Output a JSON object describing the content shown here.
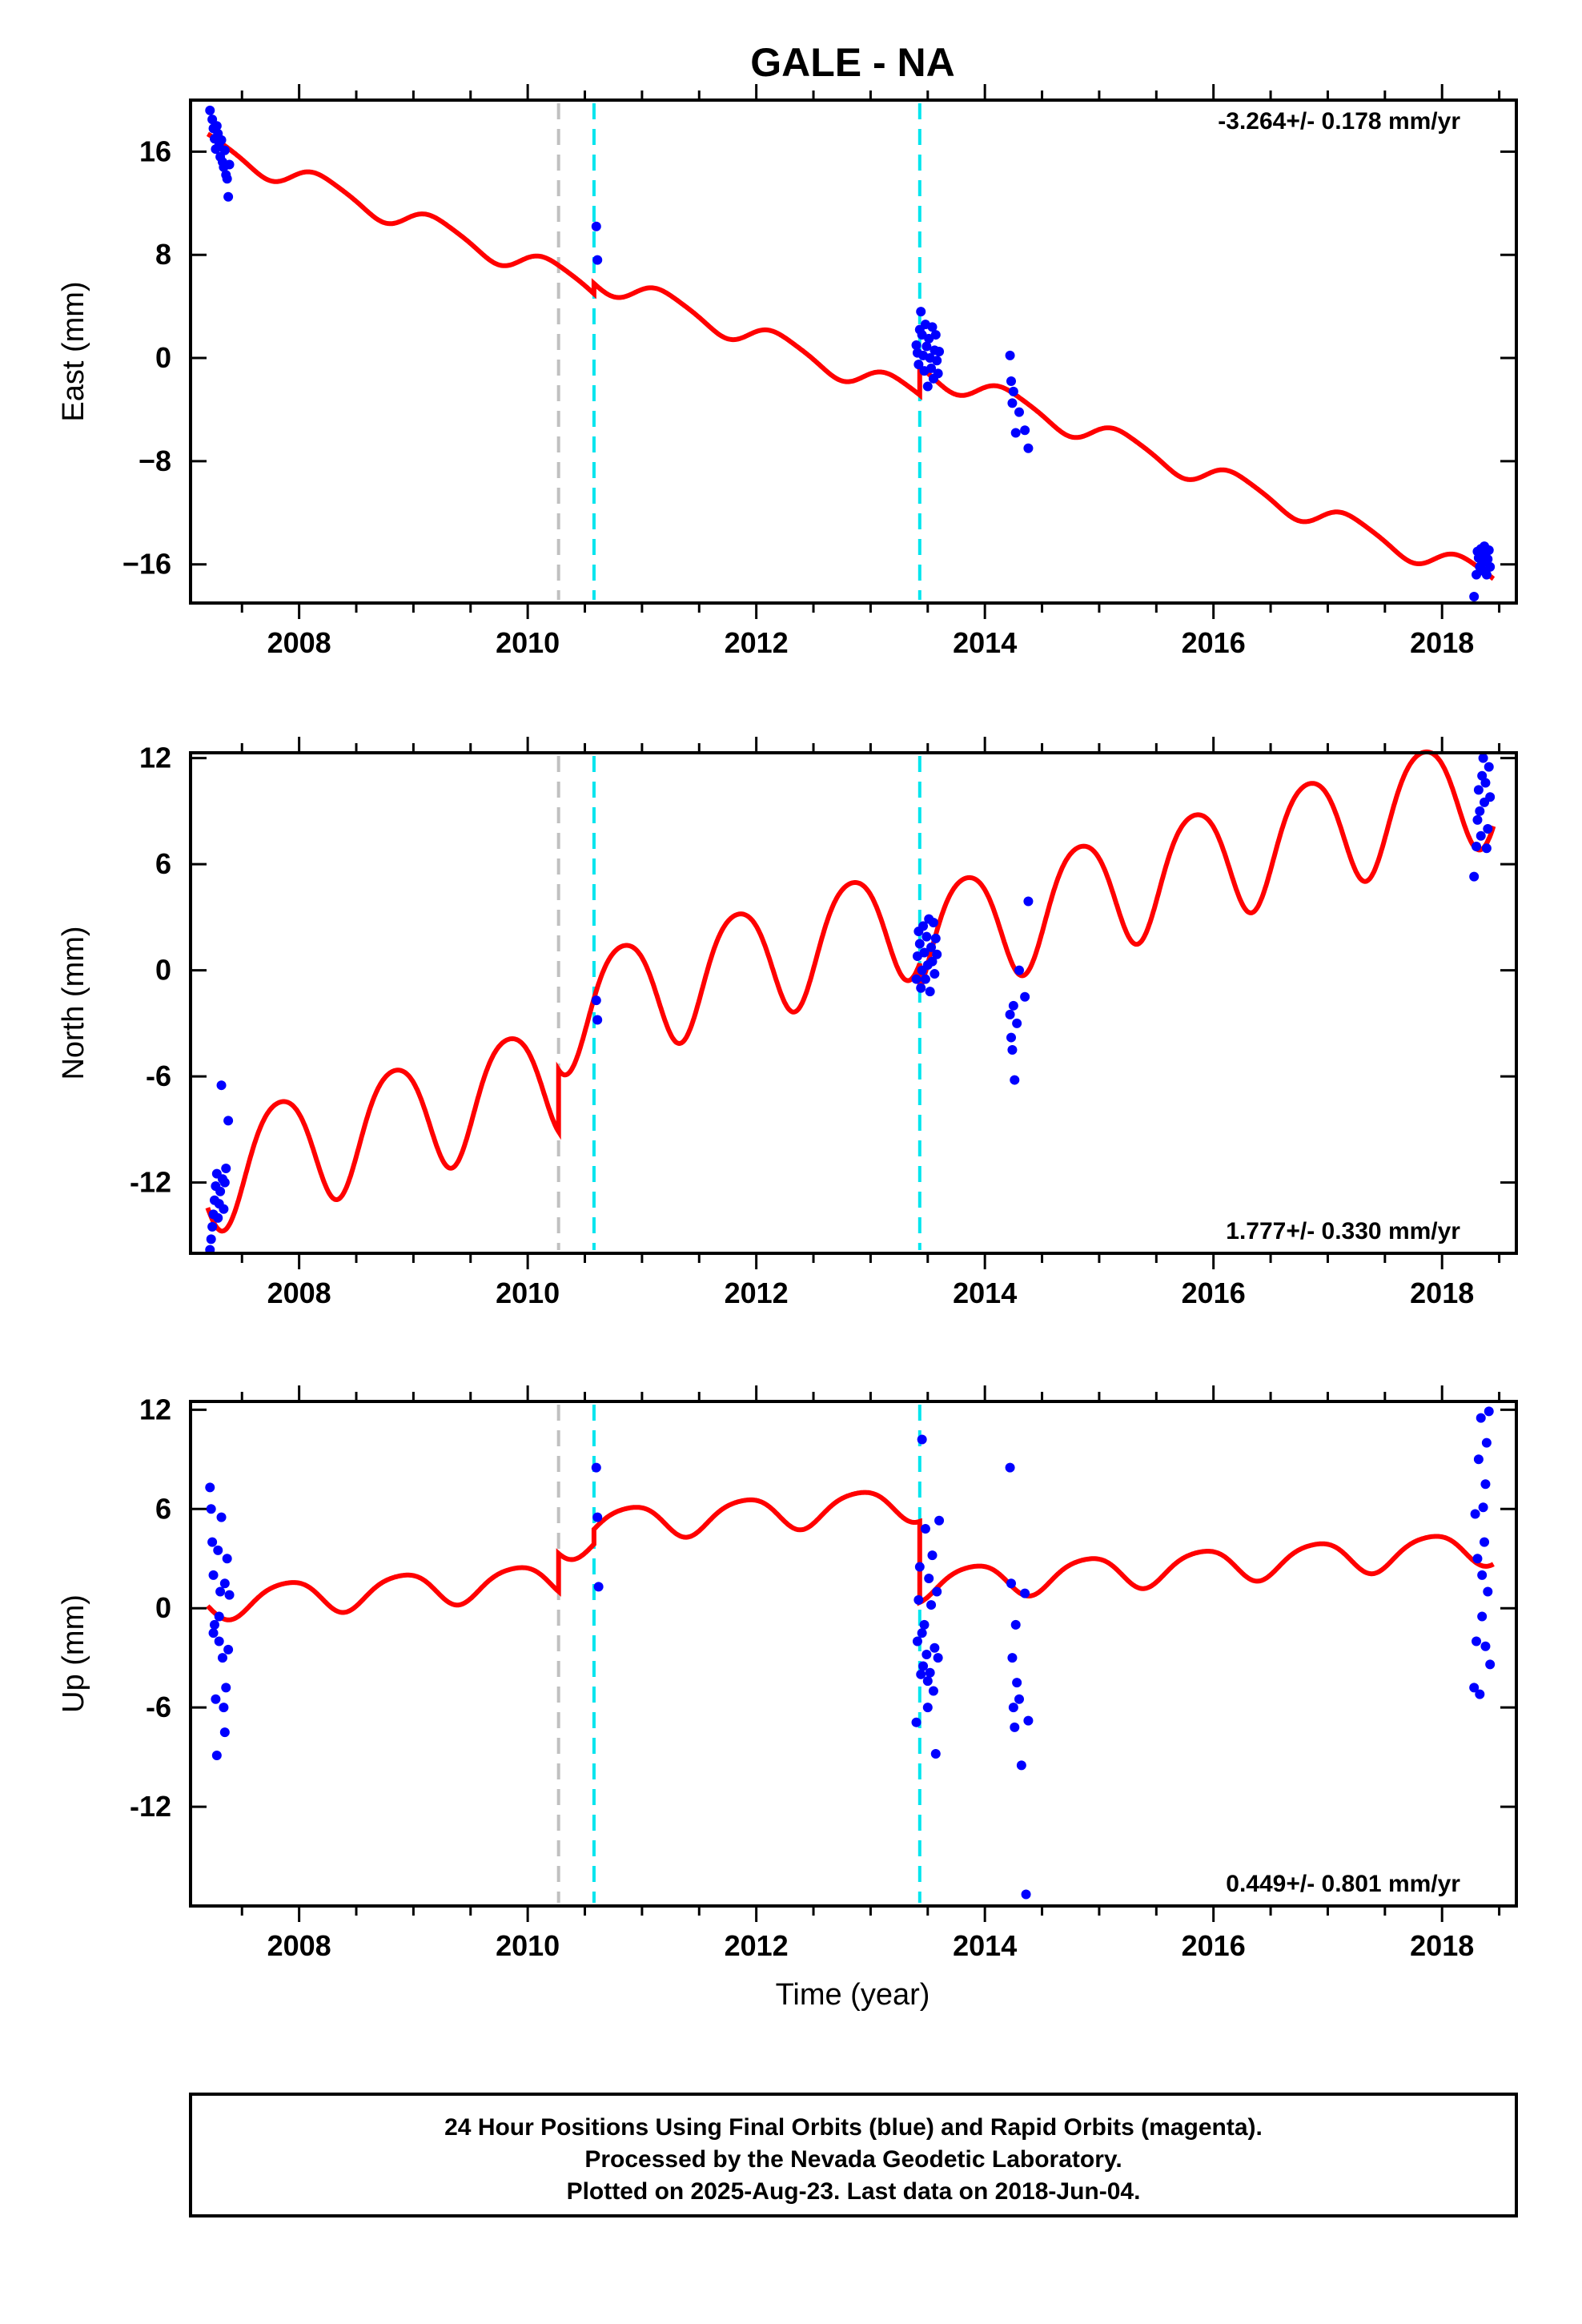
{
  "chart_data": {
    "type": "scatter",
    "title": "GALE - NA",
    "xlabel": "Time (year)",
    "xlim": [
      2007.05,
      2018.65
    ],
    "x_ticks": [
      "2008",
      "2010",
      "2012",
      "2014",
      "2016",
      "2018"
    ],
    "colors": {
      "points": "#0000ff",
      "model": "#ff0000",
      "antenna_change": "#c0c0c0",
      "earthquake": "#00e5ee"
    },
    "offset_lines": [
      {
        "kind": "antenna_change",
        "x": 2010.27
      },
      {
        "kind": "earthquake",
        "x": 2010.58
      },
      {
        "kind": "earthquake",
        "x": 2013.43
      }
    ],
    "panels": [
      {
        "id": "east",
        "ylabel": "East (mm)",
        "ylim": [
          -19,
          20
        ],
        "y_ticks": [
          "16",
          "8",
          "0",
          "−8",
          "−16"
        ],
        "rate_label": "-3.264+/- 0.178 mm/yr",
        "rate_position": "top-right",
        "model": {
          "slope": -3.264,
          "t0": 2007.3,
          "segments": [
            {
              "start": 2007.2,
              "end": 2010.27,
              "offset": 16.2
            },
            {
              "start": 2010.27,
              "end": 2010.58,
              "offset": 16.2
            },
            {
              "start": 2010.58,
              "end": 2013.43,
              "offset": 17.0
            },
            {
              "start": 2013.43,
              "end": 2018.45,
              "offset": 19.2
            }
          ],
          "annual": {
            "amplitude": 0.9,
            "phase": 0.3
          },
          "semiannual": {
            "amplitude": 0.15,
            "phase": 1.0
          }
        },
        "points": {
          "x": [
            2007.22,
            2007.24,
            2007.25,
            2007.26,
            2007.27,
            2007.28,
            2007.29,
            2007.3,
            2007.31,
            2007.32,
            2007.33,
            2007.34,
            2007.35,
            2007.36,
            2007.37,
            2007.38,
            2007.39,
            2010.6,
            2010.61,
            2013.4,
            2013.41,
            2013.42,
            2013.43,
            2013.44,
            2013.45,
            2013.46,
            2013.47,
            2013.48,
            2013.49,
            2013.5,
            2013.51,
            2013.52,
            2013.53,
            2013.54,
            2013.55,
            2013.56,
            2013.57,
            2013.58,
            2013.59,
            2013.6,
            2014.22,
            2014.23,
            2014.24,
            2014.25,
            2014.27,
            2014.3,
            2014.35,
            2014.38,
            2018.28,
            2018.3,
            2018.31,
            2018.32,
            2018.33,
            2018.34,
            2018.35,
            2018.36,
            2018.37,
            2018.38,
            2018.39,
            2018.4,
            2018.41,
            2018.42
          ],
          "y": [
            19.2,
            18.5,
            17.8,
            17.0,
            16.2,
            18.0,
            17.4,
            16.5,
            15.6,
            16.9,
            15.2,
            14.8,
            16.1,
            14.2,
            13.9,
            12.5,
            15.0,
            10.2,
            7.6,
            1.0,
            0.4,
            -0.5,
            2.2,
            3.6,
            1.8,
            0.2,
            -1.0,
            2.6,
            0.9,
            -2.2,
            1.5,
            0.0,
            -0.8,
            2.4,
            -1.6,
            0.6,
            1.8,
            -0.2,
            -1.2,
            0.5,
            0.2,
            -1.8,
            -3.5,
            -2.6,
            -5.8,
            -4.2,
            -5.6,
            -7.0,
            -18.5,
            -16.8,
            -15.0,
            -15.5,
            -16.2,
            -14.8,
            -15.9,
            -16.5,
            -14.6,
            -15.2,
            -16.8,
            -15.6,
            -14.9,
            -16.2
          ]
        }
      },
      {
        "id": "north",
        "ylabel": "North (mm)",
        "ylim": [
          -16,
          12.3
        ],
        "y_ticks": [
          "12",
          "6",
          "0",
          "-6",
          "-12"
        ],
        "rate_label": "1.777+/- 0.330 mm/yr",
        "rate_position": "bottom-right",
        "model": {
          "slope": 1.777,
          "t0": 2007.3,
          "segments": [
            {
              "start": 2007.2,
              "end": 2010.27,
              "offset": -11.2
            },
            {
              "start": 2010.27,
              "end": 2010.58,
              "offset": -7.7
            },
            {
              "start": 2010.58,
              "end": 2013.43,
              "offset": -7.7
            },
            {
              "start": 2013.43,
              "end": 2018.45,
              "offset": -9.2
            }
          ],
          "annual": {
            "amplitude": 3.2,
            "phase": 2.6
          },
          "semiannual": {
            "amplitude": 0.4,
            "phase": 0.5
          }
        },
        "points": {
          "x": [
            2007.22,
            2007.23,
            2007.24,
            2007.25,
            2007.26,
            2007.27,
            2007.28,
            2007.29,
            2007.3,
            2007.31,
            2007.32,
            2007.33,
            2007.34,
            2007.35,
            2007.36,
            2007.38,
            2010.6,
            2010.61,
            2013.4,
            2013.41,
            2013.42,
            2013.43,
            2013.44,
            2013.45,
            2013.46,
            2013.47,
            2013.48,
            2013.49,
            2013.5,
            2013.51,
            2013.52,
            2013.53,
            2013.54,
            2013.55,
            2013.56,
            2013.57,
            2013.58,
            2014.22,
            2014.23,
            2014.24,
            2014.25,
            2014.26,
            2014.28,
            2014.3,
            2014.35,
            2014.38,
            2018.28,
            2018.3,
            2018.31,
            2018.32,
            2018.33,
            2018.34,
            2018.35,
            2018.36,
            2018.37,
            2018.38,
            2018.39,
            2018.4,
            2018.41,
            2018.42
          ],
          "y": [
            -15.8,
            -15.2,
            -14.5,
            -13.8,
            -13.0,
            -12.2,
            -11.5,
            -14.0,
            -13.2,
            -12.5,
            -6.5,
            -11.8,
            -13.5,
            -12.0,
            -11.2,
            -8.5,
            -1.7,
            -2.8,
            -0.5,
            0.8,
            2.2,
            1.5,
            -1.0,
            0.0,
            2.5,
            1.0,
            -0.5,
            1.9,
            0.3,
            2.9,
            -1.2,
            1.3,
            0.5,
            2.7,
            -0.2,
            1.8,
            0.9,
            -2.5,
            -3.8,
            -4.5,
            -2.0,
            -6.2,
            -3.0,
            0.0,
            -1.5,
            3.9,
            5.3,
            7.0,
            8.5,
            10.2,
            9.0,
            7.6,
            11.0,
            12.0,
            9.5,
            10.6,
            6.9,
            8.0,
            11.5,
            9.8
          ]
        }
      },
      {
        "id": "up",
        "ylabel": "Up (mm)",
        "ylim": [
          -18,
          12.5
        ],
        "y_ticks": [
          "12",
          "6",
          "0",
          "-6",
          "-12"
        ],
        "rate_label": "0.449+/- 0.801 mm/yr",
        "rate_position": "bottom-right",
        "model": {
          "slope": 0.449,
          "t0": 2007.3,
          "segments": [
            {
              "start": 2007.2,
              "end": 2010.27,
              "offset": 0.4
            },
            {
              "start": 2010.27,
              "end": 2010.58,
              "offset": 2.7
            },
            {
              "start": 2010.58,
              "end": 2013.43,
              "offset": 3.6
            },
            {
              "start": 2013.43,
              "end": 2018.45,
              "offset": -1.3
            }
          ],
          "annual": {
            "amplitude": 1.0,
            "phase": 2.2
          },
          "semiannual": {
            "amplitude": 0.15,
            "phase": 0.0
          }
        },
        "points": {
          "x": [
            2007.22,
            2007.23,
            2007.24,
            2007.25,
            2007.26,
            2007.27,
            2007.28,
            2007.29,
            2007.3,
            2007.31,
            2007.32,
            2007.33,
            2007.34,
            2007.35,
            2007.36,
            2007.37,
            2007.38,
            2007.39,
            2007.3,
            2007.25,
            2007.35,
            2010.6,
            2010.61,
            2010.62,
            2013.4,
            2013.41,
            2013.42,
            2013.43,
            2013.44,
            2013.45,
            2013.46,
            2013.47,
            2013.48,
            2013.49,
            2013.5,
            2013.51,
            2013.52,
            2013.53,
            2013.54,
            2013.55,
            2013.56,
            2013.57,
            2013.58,
            2013.59,
            2013.6,
            2013.45,
            2013.5,
            2014.22,
            2014.23,
            2014.24,
            2014.25,
            2014.26,
            2014.27,
            2014.28,
            2014.3,
            2014.32,
            2014.35,
            2014.38,
            2014.36,
            2018.28,
            2018.29,
            2018.3,
            2018.31,
            2018.32,
            2018.33,
            2018.34,
            2018.35,
            2018.36,
            2018.37,
            2018.38,
            2018.39,
            2018.4,
            2018.41,
            2018.42,
            2018.35,
            2018.38
          ],
          "y": [
            7.3,
            6.0,
            4.0,
            2.0,
            -1.0,
            -5.5,
            -8.9,
            3.5,
            -2.0,
            1.0,
            5.5,
            -3.0,
            -6.0,
            -7.5,
            -4.8,
            3.0,
            -2.5,
            0.8,
            -0.5,
            -1.5,
            1.5,
            8.5,
            5.5,
            1.3,
            -6.9,
            -2.0,
            0.5,
            2.5,
            -4.0,
            10.2,
            -3.5,
            -1.0,
            4.8,
            -2.8,
            -6.0,
            1.8,
            -3.9,
            0.2,
            3.2,
            -5.0,
            -2.4,
            -8.8,
            1.0,
            -3.0,
            5.3,
            -1.5,
            -4.4,
            8.5,
            1.5,
            -3.0,
            -6.0,
            -7.2,
            -1.0,
            -4.5,
            -5.5,
            -9.5,
            0.9,
            -6.8,
            -17.3,
            -4.8,
            5.7,
            -2.0,
            3.0,
            9.0,
            -5.2,
            11.5,
            -0.5,
            6.1,
            4.0,
            -2.3,
            10.0,
            1.0,
            11.9,
            -3.4,
            2.0,
            7.5
          ]
        }
      }
    ]
  },
  "footer": {
    "line1": "24 Hour Positions Using Final Orbits (blue) and Rapid Orbits (magenta).",
    "line2": "Processed by the Nevada Geodetic Laboratory.",
    "line3": "Plotted on 2025-Aug-23. Last data on 2018-Jun-04."
  }
}
